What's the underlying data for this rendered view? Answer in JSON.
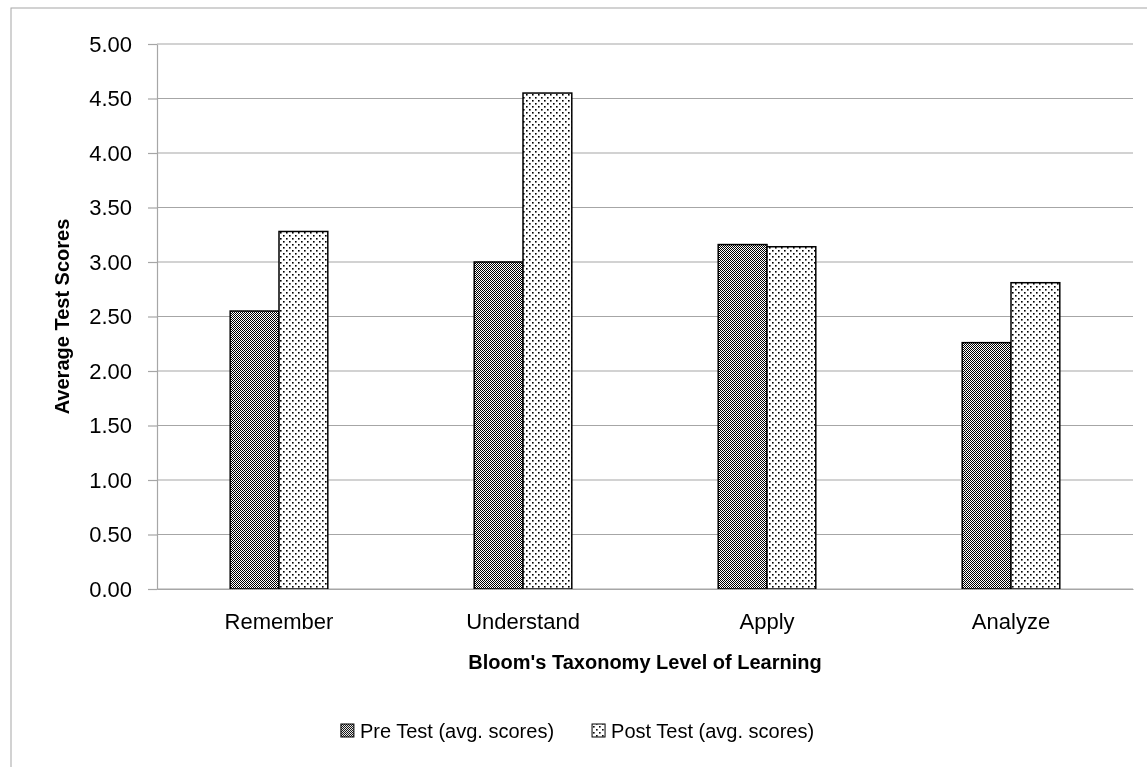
{
  "chart_data": {
    "type": "bar",
    "xlabel": "Bloom's Taxonomy Level of Learning",
    "ylabel": "Average Test Scores",
    "categories": [
      "Remember",
      "Understand",
      "Apply",
      "Analyze"
    ],
    "series": [
      {
        "name": "Pre Test (avg. scores)",
        "color": "#000000",
        "values": [
          2.55,
          3,
          3.16,
          2.26
        ]
      },
      {
        "name": "Post Test (avg. scores)",
        "color": "#000000",
        "values": [
          3.28,
          4.55,
          3.14,
          2.81
        ]
      }
    ],
    "ylim": [
      0,
      5
    ],
    "yticks": [
      {
        "value": 0,
        "label": "0.00"
      },
      {
        "value": 0.5,
        "label": "0.50"
      },
      {
        "value": 1,
        "label": "1.00"
      },
      {
        "value": 1.5,
        "label": "1.50"
      },
      {
        "value": 2,
        "label": "2.00"
      },
      {
        "value": 2.5,
        "label": "2.50"
      },
      {
        "value": 3,
        "label": "3.00"
      },
      {
        "value": 3.5,
        "label": "3.50"
      },
      {
        "value": 4,
        "label": "4.00"
      },
      {
        "value": 4.5,
        "label": "4.50"
      },
      {
        "value": 5,
        "label": "5.00"
      }
    ],
    "grid": "y",
    "legend": "bottom"
  }
}
